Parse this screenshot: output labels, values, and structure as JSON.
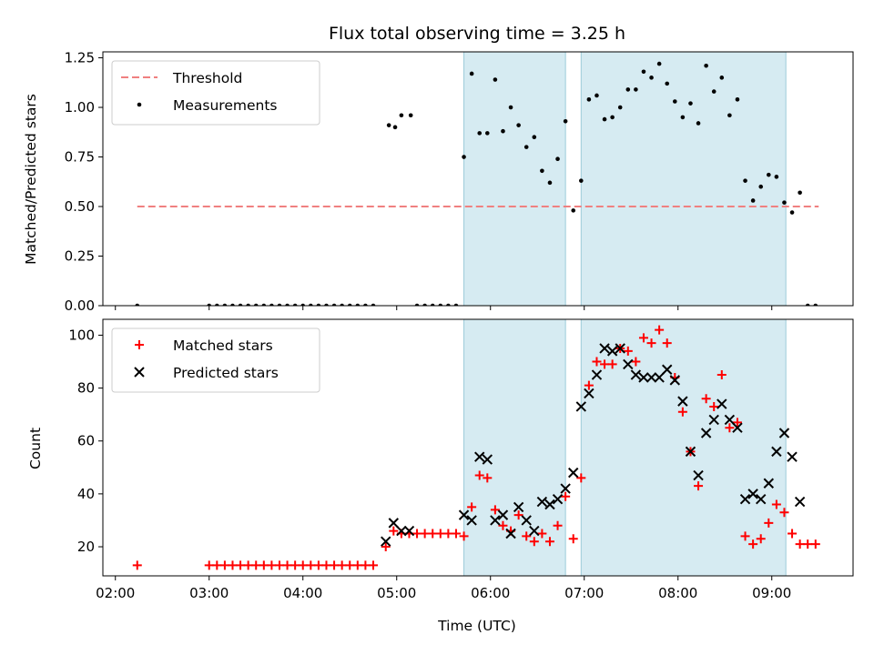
{
  "chart_data": [
    {
      "type": "scatter",
      "title": "Flux total observing time = 3.25 h",
      "xlabel": "",
      "ylabel": "Matched/Predicted stars",
      "ylim": [
        0,
        1.28
      ],
      "yticks": [
        0,
        0.25,
        0.5,
        0.75,
        1.0,
        1.25
      ],
      "ytick_labels": [
        "0.00",
        "0.25",
        "0.50",
        "0.75",
        "1.00",
        "1.25"
      ],
      "legend_position": "top-left",
      "threshold": {
        "name": "Threshold",
        "y": 0.5,
        "x_range": [
          "02:14",
          "09:30"
        ],
        "color": "#f08080"
      },
      "shaded_intervals": [
        [
          "05:43",
          "06:48"
        ],
        [
          "06:58",
          "09:09"
        ]
      ],
      "series": [
        {
          "name": "Measurements",
          "marker": "dot",
          "color": "#000000",
          "points": [
            [
              "02:14",
              0.0
            ],
            [
              "03:00",
              0.0
            ],
            [
              "03:05",
              0.0
            ],
            [
              "03:10",
              0.0
            ],
            [
              "03:15",
              0.0
            ],
            [
              "03:20",
              0.0
            ],
            [
              "03:25",
              0.0
            ],
            [
              "03:30",
              0.0
            ],
            [
              "03:35",
              0.0
            ],
            [
              "03:40",
              0.0
            ],
            [
              "03:45",
              0.0
            ],
            [
              "03:50",
              0.0
            ],
            [
              "03:55",
              0.0
            ],
            [
              "04:00",
              0.0
            ],
            [
              "04:05",
              0.0
            ],
            [
              "04:10",
              0.0
            ],
            [
              "04:15",
              0.0
            ],
            [
              "04:20",
              0.0
            ],
            [
              "04:25",
              0.0
            ],
            [
              "04:30",
              0.0
            ],
            [
              "04:35",
              0.0
            ],
            [
              "04:40",
              0.0
            ],
            [
              "04:45",
              0.0
            ],
            [
              "04:55",
              0.91
            ],
            [
              "04:59",
              0.9
            ],
            [
              "05:03",
              0.96
            ],
            [
              "05:09",
              0.96
            ],
            [
              "05:13",
              0.0
            ],
            [
              "05:18",
              0.0
            ],
            [
              "05:23",
              0.0
            ],
            [
              "05:28",
              0.0
            ],
            [
              "05:33",
              0.0
            ],
            [
              "05:38",
              0.0
            ],
            [
              "05:43",
              0.75
            ],
            [
              "05:48",
              1.17
            ],
            [
              "05:53",
              0.87
            ],
            [
              "05:58",
              0.87
            ],
            [
              "06:03",
              1.14
            ],
            [
              "06:08",
              0.88
            ],
            [
              "06:13",
              1.0
            ],
            [
              "06:18",
              0.91
            ],
            [
              "06:23",
              0.8
            ],
            [
              "06:28",
              0.85
            ],
            [
              "06:33",
              0.68
            ],
            [
              "06:38",
              0.62
            ],
            [
              "06:43",
              0.74
            ],
            [
              "06:48",
              0.93
            ],
            [
              "06:53",
              0.48
            ],
            [
              "06:58",
              0.63
            ],
            [
              "07:03",
              1.04
            ],
            [
              "07:08",
              1.06
            ],
            [
              "07:13",
              0.94
            ],
            [
              "07:18",
              0.95
            ],
            [
              "07:23",
              1.0
            ],
            [
              "07:28",
              1.09
            ],
            [
              "07:33",
              1.09
            ],
            [
              "07:38",
              1.18
            ],
            [
              "07:43",
              1.15
            ],
            [
              "07:48",
              1.22
            ],
            [
              "07:53",
              1.12
            ],
            [
              "07:58",
              1.03
            ],
            [
              "08:03",
              0.95
            ],
            [
              "08:08",
              1.02
            ],
            [
              "08:13",
              0.92
            ],
            [
              "08:18",
              1.21
            ],
            [
              "08:23",
              1.08
            ],
            [
              "08:28",
              1.15
            ],
            [
              "08:33",
              0.96
            ],
            [
              "08:38",
              1.04
            ],
            [
              "08:43",
              0.63
            ],
            [
              "08:48",
              0.53
            ],
            [
              "08:53",
              0.6
            ],
            [
              "08:58",
              0.66
            ],
            [
              "09:03",
              0.65
            ],
            [
              "09:08",
              0.52
            ],
            [
              "09:13",
              0.47
            ],
            [
              "09:18",
              0.57
            ],
            [
              "09:23",
              0.0
            ],
            [
              "09:28",
              0.0
            ]
          ]
        }
      ]
    },
    {
      "type": "scatter",
      "title": "",
      "xlabel": "Time (UTC)",
      "ylabel": "Count",
      "ylim": [
        9,
        106
      ],
      "yticks": [
        20,
        40,
        60,
        80,
        100
      ],
      "ytick_labels": [
        "20",
        "40",
        "60",
        "80",
        "100"
      ],
      "xlim": [
        "01:52",
        "09:52"
      ],
      "xticks": [
        "02:00",
        "03:00",
        "04:00",
        "05:00",
        "06:00",
        "07:00",
        "08:00",
        "09:00"
      ],
      "legend_position": "top-left",
      "shaded_intervals": [
        [
          "05:43",
          "06:48"
        ],
        [
          "06:58",
          "09:09"
        ]
      ],
      "series": [
        {
          "name": "Matched stars",
          "marker": "plus",
          "color": "#ff0000",
          "points": [
            [
              "02:14",
              13
            ],
            [
              "03:00",
              13
            ],
            [
              "03:05",
              13
            ],
            [
              "03:10",
              13
            ],
            [
              "03:15",
              13
            ],
            [
              "03:20",
              13
            ],
            [
              "03:25",
              13
            ],
            [
              "03:30",
              13
            ],
            [
              "03:35",
              13
            ],
            [
              "03:40",
              13
            ],
            [
              "03:45",
              13
            ],
            [
              "03:50",
              13
            ],
            [
              "03:55",
              13
            ],
            [
              "04:00",
              13
            ],
            [
              "04:05",
              13
            ],
            [
              "04:10",
              13
            ],
            [
              "04:15",
              13
            ],
            [
              "04:20",
              13
            ],
            [
              "04:25",
              13
            ],
            [
              "04:30",
              13
            ],
            [
              "04:35",
              13
            ],
            [
              "04:40",
              13
            ],
            [
              "04:45",
              13
            ],
            [
              "04:53",
              20
            ],
            [
              "04:58",
              26
            ],
            [
              "05:03",
              25
            ],
            [
              "05:08",
              25
            ],
            [
              "05:13",
              25
            ],
            [
              "05:18",
              25
            ],
            [
              "05:23",
              25
            ],
            [
              "05:28",
              25
            ],
            [
              "05:33",
              25
            ],
            [
              "05:38",
              25
            ],
            [
              "05:43",
              24
            ],
            [
              "05:48",
              35
            ],
            [
              "05:53",
              47
            ],
            [
              "05:58",
              46
            ],
            [
              "06:03",
              34
            ],
            [
              "06:08",
              28
            ],
            [
              "06:13",
              26
            ],
            [
              "06:18",
              32
            ],
            [
              "06:23",
              24
            ],
            [
              "06:28",
              22
            ],
            [
              "06:33",
              25
            ],
            [
              "06:38",
              22
            ],
            [
              "06:43",
              28
            ],
            [
              "06:48",
              39
            ],
            [
              "06:53",
              23
            ],
            [
              "06:58",
              46
            ],
            [
              "07:03",
              81
            ],
            [
              "07:08",
              90
            ],
            [
              "07:13",
              89
            ],
            [
              "07:18",
              89
            ],
            [
              "07:23",
              95
            ],
            [
              "07:28",
              94
            ],
            [
              "07:33",
              90
            ],
            [
              "07:38",
              99
            ],
            [
              "07:43",
              97
            ],
            [
              "07:48",
              102
            ],
            [
              "07:53",
              97
            ],
            [
              "07:58",
              84
            ],
            [
              "08:03",
              71
            ],
            [
              "08:08",
              56
            ],
            [
              "08:13",
              43
            ],
            [
              "08:18",
              76
            ],
            [
              "08:23",
              73
            ],
            [
              "08:28",
              85
            ],
            [
              "08:33",
              65
            ],
            [
              "08:38",
              67
            ],
            [
              "08:43",
              24
            ],
            [
              "08:48",
              21
            ],
            [
              "08:53",
              23
            ],
            [
              "08:58",
              29
            ],
            [
              "09:03",
              36
            ],
            [
              "09:08",
              33
            ],
            [
              "09:13",
              25
            ],
            [
              "09:18",
              21
            ],
            [
              "09:23",
              21
            ],
            [
              "09:28",
              21
            ]
          ]
        },
        {
          "name": "Predicted stars",
          "marker": "x",
          "color": "#000000",
          "points": [
            [
              "04:53",
              22
            ],
            [
              "04:58",
              29
            ],
            [
              "05:03",
              26
            ],
            [
              "05:08",
              26
            ],
            [
              "05:43",
              32
            ],
            [
              "05:48",
              30
            ],
            [
              "05:53",
              54
            ],
            [
              "05:58",
              53
            ],
            [
              "06:03",
              30
            ],
            [
              "06:08",
              32
            ],
            [
              "06:13",
              25
            ],
            [
              "06:18",
              35
            ],
            [
              "06:23",
              30
            ],
            [
              "06:28",
              26
            ],
            [
              "06:33",
              37
            ],
            [
              "06:38",
              36
            ],
            [
              "06:43",
              38
            ],
            [
              "06:48",
              42
            ],
            [
              "06:53",
              48
            ],
            [
              "06:58",
              73
            ],
            [
              "07:03",
              78
            ],
            [
              "07:08",
              85
            ],
            [
              "07:13",
              95
            ],
            [
              "07:18",
              94
            ],
            [
              "07:23",
              95
            ],
            [
              "07:28",
              89
            ],
            [
              "07:33",
              85
            ],
            [
              "07:38",
              84
            ],
            [
              "07:43",
              84
            ],
            [
              "07:48",
              84
            ],
            [
              "07:53",
              87
            ],
            [
              "07:58",
              83
            ],
            [
              "08:03",
              75
            ],
            [
              "08:08",
              56
            ],
            [
              "08:13",
              47
            ],
            [
              "08:18",
              63
            ],
            [
              "08:23",
              68
            ],
            [
              "08:28",
              74
            ],
            [
              "08:33",
              68
            ],
            [
              "08:38",
              65
            ],
            [
              "08:43",
              38
            ],
            [
              "08:48",
              40
            ],
            [
              "08:53",
              38
            ],
            [
              "08:58",
              44
            ],
            [
              "09:03",
              56
            ],
            [
              "09:08",
              63
            ],
            [
              "09:13",
              54
            ],
            [
              "09:18",
              37
            ]
          ]
        }
      ]
    }
  ]
}
